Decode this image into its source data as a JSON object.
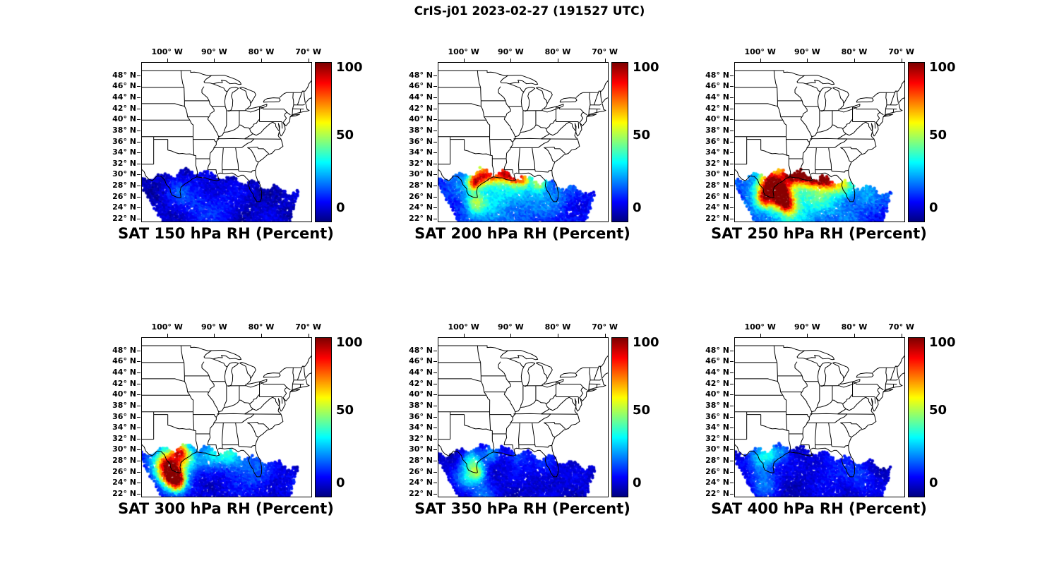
{
  "figure": {
    "title": "CrIS-j01 2023-02-27 (191527 UTC)"
  },
  "axes": {
    "lon_tick_labels": [
      "100° W",
      "90° W",
      "80° W",
      "70° W"
    ],
    "lon_tick_values": [
      -100,
      -90,
      -80,
      -70
    ],
    "lat_tick_labels": [
      "48° N",
      "46° N",
      "44° N",
      "42° N",
      "40° N",
      "38° N",
      "36° N",
      "34° N",
      "32° N",
      "30° N",
      "28° N",
      "26° N",
      "24° N",
      "22° N"
    ],
    "lat_tick_values": [
      48,
      46,
      44,
      42,
      40,
      38,
      36,
      34,
      32,
      30,
      28,
      26,
      24,
      22
    ]
  },
  "colorbar": {
    "tick_labels": [
      "100",
      "50",
      "0"
    ],
    "min": 0,
    "max": 100,
    "colormap": "jet"
  },
  "chart_data": {
    "type": "scatter",
    "description": "Satellite sounder swath retrievals of relative humidity (percent, 0-100, jet colormap) over the eastern United States and Gulf of Mexico at six pressure levels",
    "value_label": "RH (Percent)",
    "value_range": [
      0,
      100
    ],
    "levels_hPa": [
      150,
      200,
      250,
      300,
      350,
      400
    ],
    "map_extent": {
      "lon": [
        -105.5,
        -69.5
      ],
      "lat": [
        21.6,
        50.4
      ]
    },
    "swath": {
      "north_lat": 30.8,
      "ref_lon": -95,
      "slope_east": -0.18,
      "slope_west": 0.15,
      "west_lon_at_22": -101.5,
      "west_slope": 0.65,
      "east_lon_at_29": -71.5,
      "east_slope": 0.35,
      "south_lat_clip": 21.6
    },
    "panels": [
      {
        "level_hPa": 150,
        "title": "SAT 150 hPa RH (Percent)",
        "field": {
          "base": 7,
          "noise": 7,
          "blobs": [
            [
              -94,
              25,
              3,
              9
            ],
            [
              -98,
              27.5,
              2,
              7
            ],
            [
              -88,
              24,
              2.5,
              7
            ]
          ]
        }
      },
      {
        "level_hPa": 200,
        "title": "SAT 200 hPa RH (Percent)",
        "field": {
          "base": 13,
          "noise": 8,
          "blobs": [
            [
              -95,
              27.5,
              5,
              20
            ],
            [
              -87,
              28,
              4,
              14
            ],
            [
              -96.5,
              29.8,
              1.1,
              55
            ],
            [
              -94,
              30.4,
              1.3,
              52
            ],
            [
              -91.5,
              30.3,
              0.9,
              48
            ],
            [
              -89.5,
              29.9,
              1,
              55
            ],
            [
              -87.5,
              29.4,
              0.9,
              42
            ],
            [
              -98,
              28.6,
              0.9,
              48
            ],
            [
              -84,
              28.6,
              1.1,
              32
            ],
            [
              -97.5,
              25,
              1.3,
              26
            ],
            [
              -80,
              26.5,
              2.5,
              8
            ]
          ]
        }
      },
      {
        "level_hPa": 250,
        "title": "SAT 250 hPa RH (Percent)",
        "field": {
          "base": 16,
          "noise": 9,
          "blobs": [
            [
              -95,
              27.5,
              5.5,
              26
            ],
            [
              -86,
              28,
              4,
              20
            ],
            [
              -97.8,
              28.8,
              1.6,
              72
            ],
            [
              -95.5,
              26.8,
              1.4,
              55
            ],
            [
              -93.5,
              30.6,
              1.4,
              65
            ],
            [
              -91,
              30.6,
              1.2,
              62
            ],
            [
              -89,
              30.2,
              1.2,
              68
            ],
            [
              -87,
              29.5,
              1.1,
              55
            ],
            [
              -85,
              29,
              1,
              42
            ],
            [
              -99,
              26,
              1.2,
              52
            ],
            [
              -95.5,
              25.8,
              1.1,
              48
            ],
            [
              -94,
              24.5,
              1.2,
              40
            ],
            [
              -82.5,
              28.5,
              1.3,
              30
            ],
            [
              -78,
              27,
              2,
              12
            ]
          ]
        }
      },
      {
        "level_hPa": 300,
        "title": "SAT 300 hPa RH (Percent)",
        "field": {
          "base": 10,
          "noise": 7,
          "blobs": [
            [
              -99,
              27,
              3,
              22
            ],
            [
              -100,
              27.5,
              1.8,
              58
            ],
            [
              -99,
              25.5,
              1.5,
              62
            ],
            [
              -97.8,
              24.5,
              1.2,
              48
            ],
            [
              -97.3,
              29.8,
              1.2,
              55
            ],
            [
              -95.5,
              28.5,
              1.5,
              24
            ],
            [
              -90.5,
              29.5,
              1.8,
              22
            ],
            [
              -87,
              29.3,
              1.5,
              26
            ],
            [
              -84,
              28,
              2,
              14
            ],
            [
              -80.5,
              25.5,
              2,
              9
            ]
          ]
        }
      },
      {
        "level_hPa": 350,
        "title": "SAT 350 hPa RH (Percent)",
        "field": {
          "base": 8,
          "noise": 6,
          "blobs": [
            [
              -98.5,
              28,
              1.5,
              30
            ],
            [
              -97,
              26,
              1.2,
              34
            ],
            [
              -99.5,
              25,
              1.5,
              20
            ],
            [
              -94,
              29.5,
              1.2,
              18
            ],
            [
              -88.5,
              29.2,
              1.5,
              14
            ],
            [
              -83,
              27.5,
              2,
              9
            ],
            [
              -96,
              22.5,
              2,
              13
            ]
          ]
        }
      },
      {
        "level_hPa": 400,
        "title": "SAT 400 hPa RH (Percent)",
        "field": {
          "base": 8,
          "noise": 6,
          "blobs": [
            [
              -100,
              28.5,
              1.8,
              26
            ],
            [
              -97.5,
              29.5,
              1.3,
              20
            ],
            [
              -99,
              24,
              2,
              14
            ],
            [
              -95,
              29.8,
              1,
              15
            ],
            [
              -85,
              27,
              2.5,
              8
            ],
            [
              -79,
              25,
              2,
              10
            ]
          ]
        }
      }
    ]
  }
}
